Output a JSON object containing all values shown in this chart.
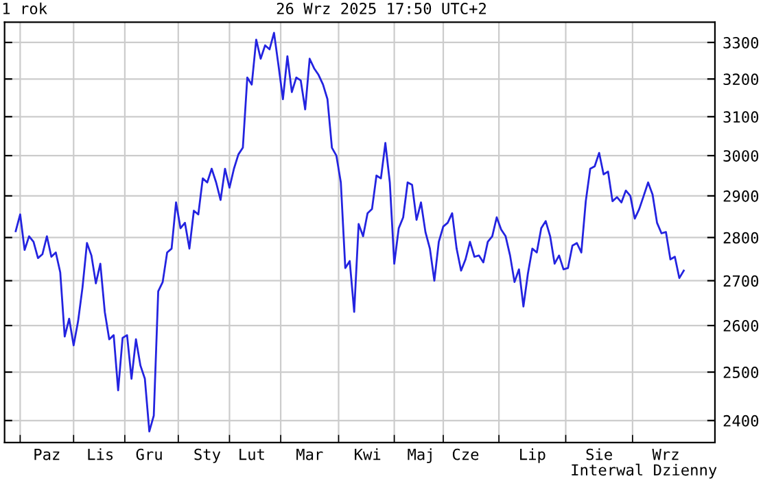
{
  "chart_data": {
    "type": "line",
    "title": "26 Wrz 2025 17:50 UTC+2",
    "annotations": [
      "1 rok",
      "Interwal Dzienny"
    ],
    "categories": [
      null,
      null,
      null,
      null,
      null,
      null,
      null,
      "Paz",
      null,
      null,
      null,
      null,
      null,
      null,
      null,
      null,
      null,
      null,
      null,
      "Lis",
      null,
      null,
      null,
      null,
      null,
      null,
      null,
      null,
      null,
      null,
      "Gru",
      null,
      null,
      null,
      null,
      null,
      null,
      null,
      null,
      null,
      null,
      null,
      null,
      "Sty",
      null,
      null,
      null,
      null,
      null,
      null,
      null,
      null,
      null,
      "Lut",
      null,
      null,
      null,
      null,
      null,
      null,
      null,
      null,
      null,
      null,
      null,
      null,
      "Mar",
      null,
      null,
      null,
      null,
      null,
      null,
      null,
      null,
      null,
      null,
      null,
      null,
      "Kwi",
      null,
      null,
      null,
      null,
      null,
      null,
      null,
      null,
      null,
      null,
      null,
      "Maj",
      null,
      null,
      null,
      null,
      null,
      null,
      null,
      null,
      null,
      "Cze",
      null,
      null,
      null,
      null,
      null,
      null,
      null,
      null,
      null,
      null,
      null,
      null,
      null,
      null,
      "Lip",
      null,
      null,
      null,
      null,
      null,
      null,
      null,
      null,
      null,
      null,
      null,
      null,
      null,
      null,
      "Sie",
      null,
      null,
      null,
      null,
      null,
      null,
      null,
      null,
      null,
      null,
      null,
      null,
      null,
      null,
      "Wrz",
      null,
      null,
      null,
      null
    ],
    "series": [
      {
        "color": "#2323e0",
        "values": [
          2815,
          2855,
          2771,
          2803,
          2790,
          2752,
          2761,
          2803,
          2755,
          2765,
          2719,
          2576,
          2615,
          2557,
          2609,
          2685,
          2787,
          2758,
          2694,
          2739,
          2630,
          2570,
          2579,
          2462,
          2573,
          2579,
          2486,
          2570,
          2514,
          2486,
          2378,
          2410,
          2676,
          2697,
          2765,
          2774,
          2884,
          2822,
          2835,
          2774,
          2864,
          2855,
          2943,
          2933,
          2967,
          2933,
          2890,
          2967,
          2920,
          2967,
          3003,
          3020,
          3204,
          3185,
          3308,
          3255,
          3292,
          3281,
          3327,
          3237,
          3146,
          3262,
          3165,
          3204,
          3196,
          3119,
          3255,
          3229,
          3211,
          3185,
          3146,
          3020,
          3000,
          2933,
          2729,
          2745,
          2630,
          2832,
          2803,
          2858,
          2868,
          2950,
          2943,
          3032,
          2933,
          2739,
          2822,
          2848,
          2933,
          2927,
          2842,
          2884,
          2813,
          2774,
          2700,
          2790,
          2826,
          2835,
          2858,
          2774,
          2723,
          2749,
          2790,
          2755,
          2758,
          2742,
          2790,
          2803,
          2848,
          2819,
          2803,
          2758,
          2697,
          2726,
          2642,
          2716,
          2774,
          2765,
          2822,
          2839,
          2803,
          2739,
          2758,
          2726,
          2729,
          2781,
          2787,
          2765,
          2887,
          2967,
          2973,
          3007,
          2953,
          2960,
          2887,
          2897,
          2884,
          2913,
          2900,
          2845,
          2868,
          2900,
          2933,
          2903,
          2835,
          2810,
          2813,
          2749,
          2755,
          2706,
          2723
        ]
      }
    ],
    "log": "y",
    "ylim": [
      2356,
      3357
    ],
    "yticks": [
      2400,
      2500,
      2600,
      2700,
      2800,
      2900,
      3000,
      3100,
      3200,
      3300
    ],
    "grid": true,
    "marker": "none",
    "line_style": "solid"
  }
}
